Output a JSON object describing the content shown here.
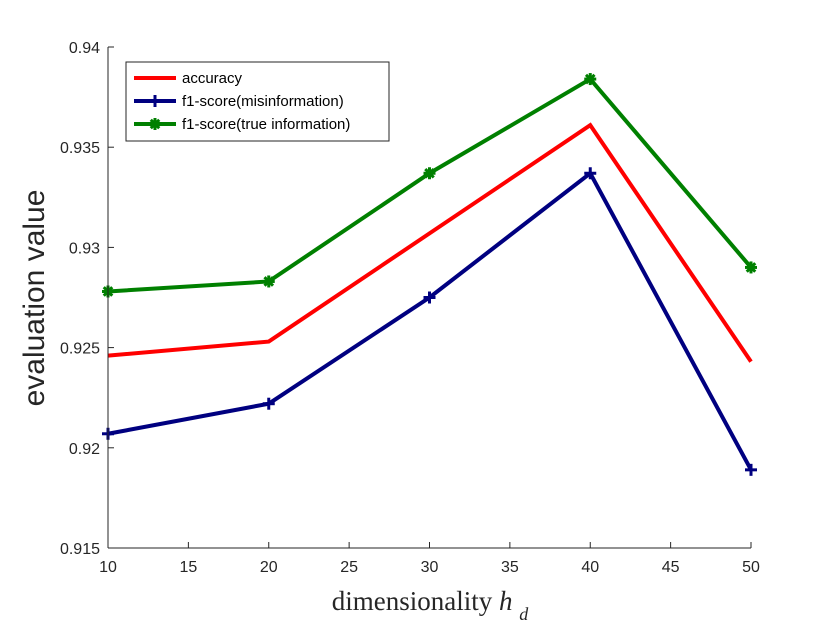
{
  "chart_data": {
    "type": "line",
    "title": "",
    "xlabel": "dimensionality",
    "xlabel_symbol": "h",
    "xlabel_subscript": "d",
    "ylabel": "evaluation value",
    "x": [
      10,
      20,
      30,
      40,
      50
    ],
    "xlim": [
      10,
      50
    ],
    "ylim": [
      0.915,
      0.94
    ],
    "xticks": [
      10,
      15,
      20,
      25,
      30,
      35,
      40,
      45,
      50
    ],
    "yticks": [
      0.915,
      0.92,
      0.925,
      0.93,
      0.935,
      0.94
    ],
    "ytick_labels": [
      "0.915",
      "0.92",
      "0.925",
      "0.93",
      "0.935",
      "0.94"
    ],
    "grid": false,
    "legend_position": "top-left",
    "series": [
      {
        "name": "accuracy",
        "color": "#ff0000",
        "marker": "none",
        "values": [
          0.9246,
          0.9253,
          0.9307,
          0.9361,
          0.9243
        ]
      },
      {
        "name": "f1-score(misinformation)",
        "color": "#000080",
        "marker": "plus",
        "values": [
          0.9207,
          0.9222,
          0.9275,
          0.9337,
          0.9189
        ]
      },
      {
        "name": "f1-score(true information)",
        "color": "#008000",
        "marker": "asterisk",
        "values": [
          0.9278,
          0.9283,
          0.9337,
          0.9384,
          0.929
        ]
      }
    ]
  }
}
